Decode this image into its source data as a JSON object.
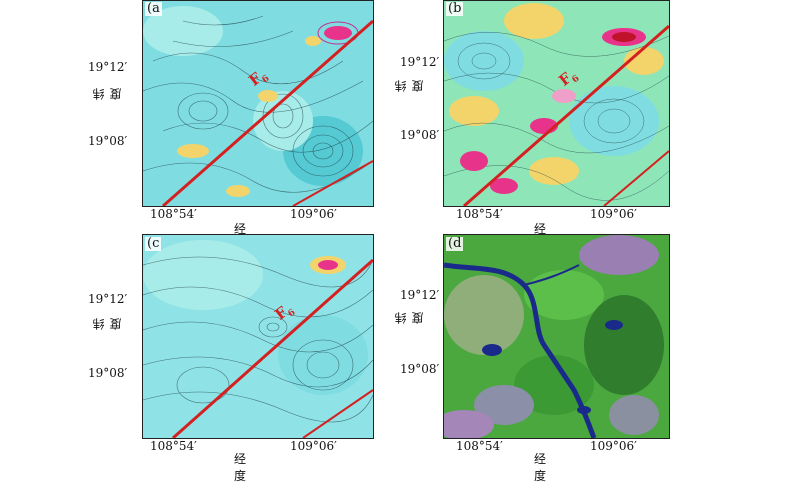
{
  "panels": [
    {
      "id": "a",
      "label": "(a",
      "fault": "F",
      "fault_sub": "6",
      "xticks": [
        "108°54′",
        "109°06′"
      ],
      "yticks": [
        "19°12′",
        "19°08′"
      ],
      "xlabel": "经度",
      "ylabel": "纬度"
    },
    {
      "id": "b",
      "label": "(b",
      "fault": "F",
      "fault_sub": "6",
      "xticks": [
        "108°54′",
        "109°06′"
      ],
      "yticks": [
        "19°12′",
        "19°08′"
      ],
      "xlabel": "经度",
      "ylabel": "纬度"
    },
    {
      "id": "c",
      "label": "(c",
      "fault": "F",
      "fault_sub": "6",
      "xticks": [
        "108°54′",
        "109°06′"
      ],
      "yticks": [
        "19°12′",
        "19°08′"
      ],
      "xlabel": "经度",
      "ylabel": "纬度"
    },
    {
      "id": "d",
      "label": "(d",
      "fault": "",
      "fault_sub": "",
      "xticks": [
        "108°54′",
        "109°06′"
      ],
      "yticks": [
        "19°12′",
        "19°08′"
      ],
      "xlabel": "经度",
      "ylabel": "纬度"
    }
  ],
  "colors": {
    "fault_line": "#d42020",
    "background_cyan": "#8fe3e6",
    "anomaly_high": "#e8338a",
    "anomaly_mid": "#f2d46a",
    "land_green": "#3f9a3a",
    "river_blue": "#1a2a8a"
  }
}
